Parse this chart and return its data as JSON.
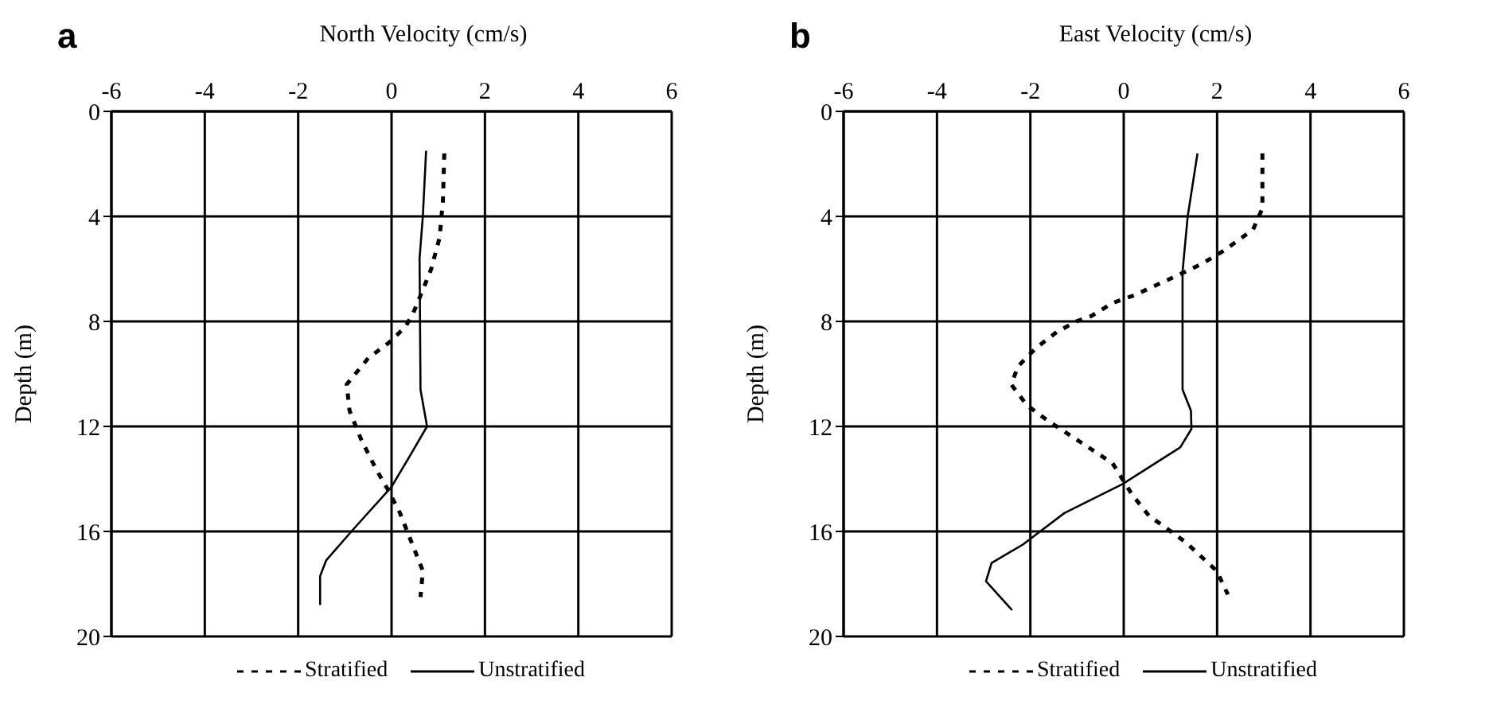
{
  "chart_data": [
    {
      "type": "line",
      "title": "a",
      "xlabel": "North Velocity (cm/s)",
      "ylabel": "Depth (m)",
      "xlim": [
        -6,
        6
      ],
      "xticks": [
        -6,
        -4,
        -2,
        0,
        2,
        4,
        6
      ],
      "ylim": [
        20,
        0
      ],
      "yticks": [
        0,
        4,
        8,
        12,
        16,
        20
      ],
      "grid": true,
      "legend": "bottom",
      "series": [
        {
          "name": "Stratified",
          "color": "#000000",
          "line_style": "dashed",
          "x": [
            1.13,
            1.1,
            1.03,
            0.85,
            0.67,
            0.46,
            0.3,
            -0.05,
            -0.5,
            -0.96,
            -0.9,
            -0.65,
            -0.34,
            -0.08,
            0.18,
            0.38,
            0.67,
            0.62
          ],
          "values": [
            1.6,
            3.4,
            4.8,
            6,
            6.8,
            7.7,
            8.2,
            8.8,
            9.4,
            10.4,
            11.4,
            12.5,
            13.6,
            14.4,
            15.3,
            16.2,
            17.5,
            18.5
          ]
        },
        {
          "name": "Unstratified",
          "color": "#000000",
          "line_style": "solid",
          "x": [
            0.74,
            0.67,
            0.6,
            0.62,
            0.76,
            0.4,
            0,
            -0.86,
            -1.4,
            -1.53,
            -1.53
          ],
          "values": [
            1.5,
            4,
            5.6,
            10.6,
            12,
            13.1,
            14.3,
            16,
            17.1,
            17.7,
            18.8
          ]
        }
      ]
    },
    {
      "type": "line",
      "title": "b",
      "xlabel": "East Velocity (cm/s)",
      "ylabel": "Depth (m)",
      "xlim": [
        -6,
        6
      ],
      "xticks": [
        -6,
        -4,
        -2,
        0,
        2,
        4,
        6
      ],
      "ylim": [
        20,
        0
      ],
      "yticks": [
        0,
        4,
        8,
        12,
        16,
        20
      ],
      "grid": true,
      "legend": "bottom",
      "series": [
        {
          "name": "Stratified",
          "color": "#000000",
          "line_style": "dashed",
          "x": [
            2.97,
            2.97,
            2.77,
            2.15,
            1.68,
            1.21,
            0.72,
            0.23,
            -0.24,
            -0.7,
            -1.02,
            -1.43,
            -1.87,
            -2.26,
            -2.41,
            -2.07,
            -1.61,
            -0.24,
            0.18,
            0.54,
            1.32,
            1.99,
            2.23
          ],
          "values": [
            1.6,
            3.7,
            4.5,
            5.3,
            5.8,
            6.2,
            6.6,
            7,
            7.3,
            7.8,
            8,
            8.4,
            9,
            9.7,
            10.4,
            11.2,
            11.8,
            13.4,
            14.6,
            15.4,
            16.4,
            17.5,
            18.4
          ]
        },
        {
          "name": "Unstratified",
          "color": "#000000",
          "line_style": "solid",
          "x": [
            1.58,
            1.37,
            1.26,
            1.26,
            1.44,
            1.45,
            1.21,
            -0.03,
            -1.27,
            -1.79,
            -2.16,
            -2.83,
            -2.95,
            -2.39
          ],
          "values": [
            1.6,
            4,
            6.1,
            10.6,
            11.4,
            12.1,
            12.8,
            14.2,
            15.3,
            16,
            16.5,
            17.2,
            17.9,
            19
          ]
        }
      ]
    }
  ]
}
